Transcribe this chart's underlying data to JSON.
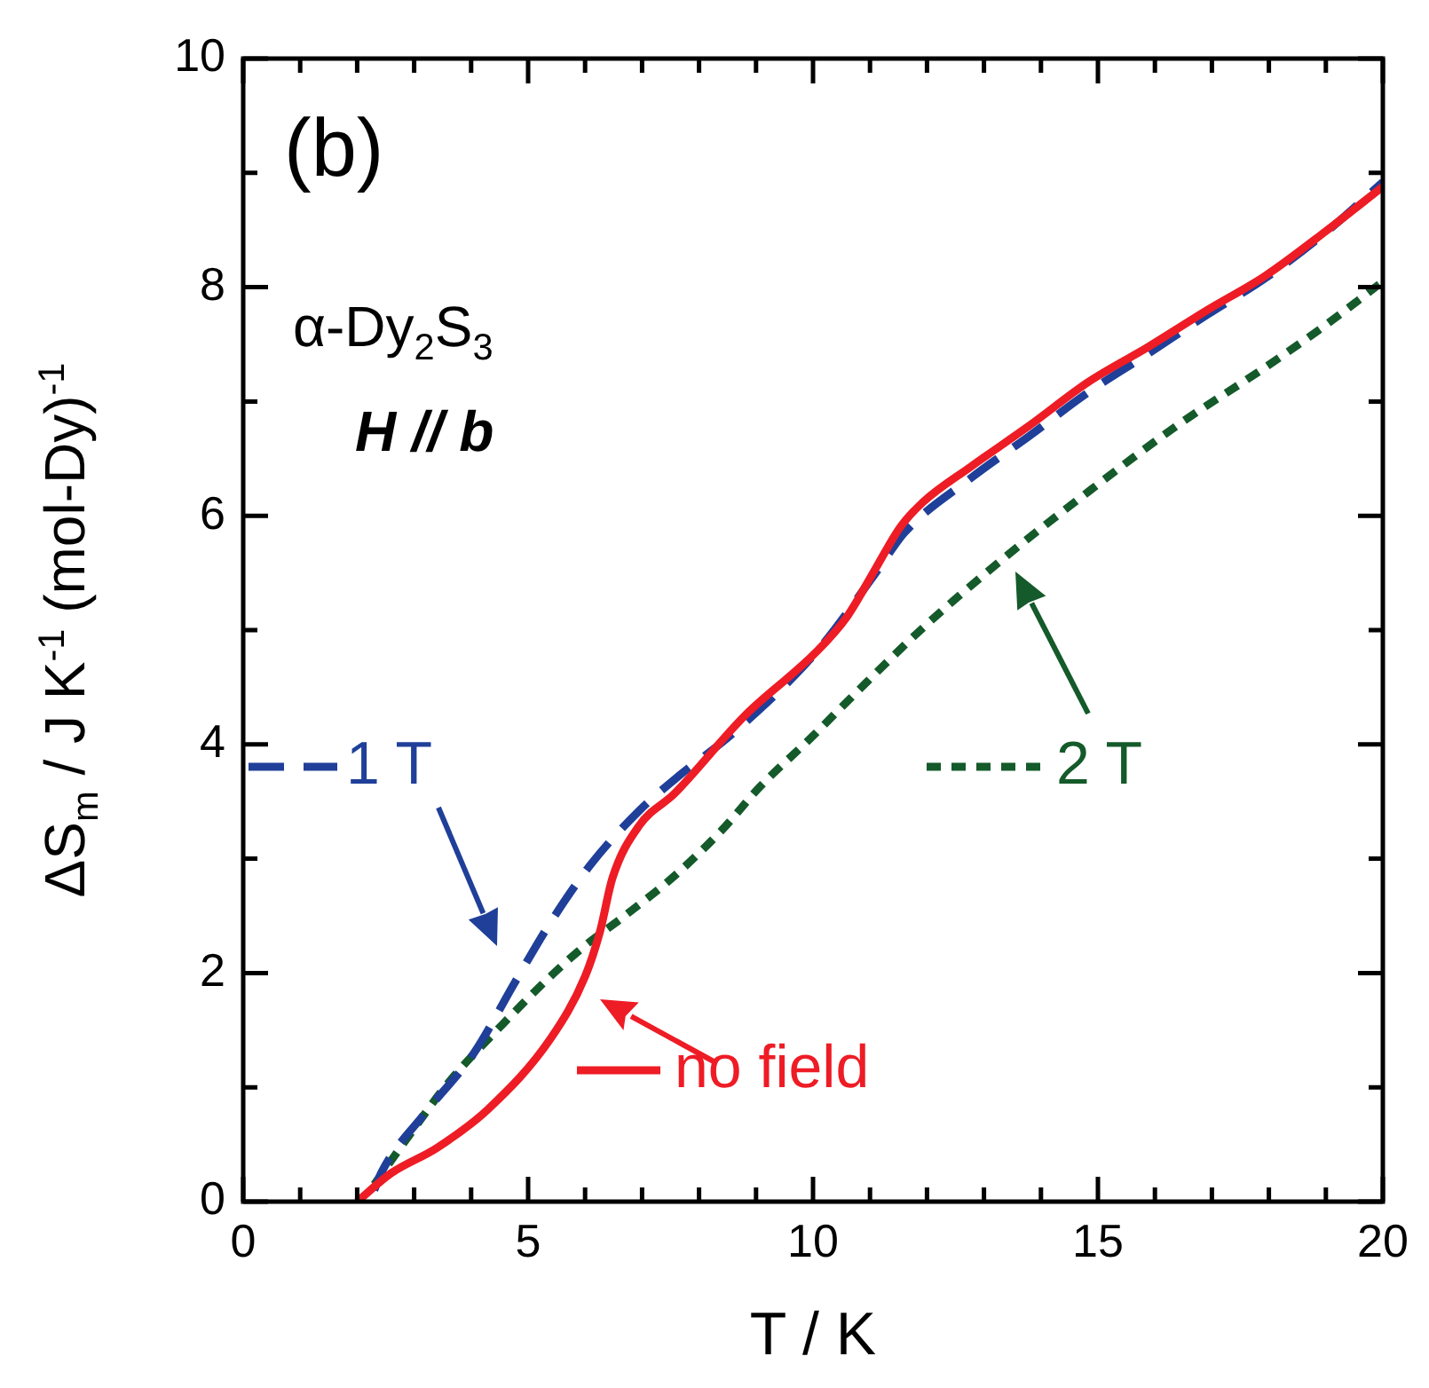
{
  "chart_data": {
    "type": "line",
    "xlabel": "T / K",
    "ylabel": "ΔS$_{m}$  / J K$^{-1}$ (mol-Dy)$^{-1}$",
    "annotations": [
      "(b)",
      "α-Dy$_{2}$S$_{3}$",
      "H // b"
    ],
    "xlim": [
      0,
      20
    ],
    "ylim": [
      0,
      10
    ],
    "xticks": [
      0,
      {
        "value": 1,
        "label": null
      },
      {
        "value": 2,
        "label": null
      },
      {
        "value": 3,
        "label": null
      },
      {
        "value": 4,
        "label": null
      },
      5,
      {
        "value": 6,
        "label": null
      },
      {
        "value": 7,
        "label": null
      },
      {
        "value": 8,
        "label": null
      },
      {
        "value": 9,
        "label": null
      },
      10,
      {
        "value": 11,
        "label": null
      },
      {
        "value": 12,
        "label": null
      },
      {
        "value": 13,
        "label": null
      },
      {
        "value": 14,
        "label": null
      },
      15,
      {
        "value": 16,
        "label": null
      },
      {
        "value": 17,
        "label": null
      },
      {
        "value": 18,
        "label": null
      },
      {
        "value": 19,
        "label": null
      },
      20
    ],
    "yticks": [
      0,
      {
        "value": 1,
        "label": null
      },
      2,
      {
        "value": 3,
        "label": null
      },
      4,
      {
        "value": 5,
        "label": null
      },
      6,
      {
        "value": 7,
        "label": null
      },
      8,
      {
        "value": 9,
        "label": null
      },
      10
    ],
    "grid": false,
    "legend": "bottom left",
    "series": [
      {
        "name": "no field",
        "color": "#ee1c25",
        "line_style": "solid",
        "x": [
          2.0,
          2.6,
          3.4,
          4.3,
          5.4,
          6.0,
          6.26,
          6.48,
          6.95,
          7.57,
          8.8,
          10.06,
          10.6,
          11.1,
          11.53,
          11.93,
          12.77,
          13.8,
          14.83,
          15.89,
          16.92,
          17.94,
          19.0,
          20.0
        ],
        "values": [
          0.0,
          0.25,
          0.47,
          0.81,
          1.43,
          1.97,
          2.36,
          2.83,
          3.29,
          3.57,
          4.25,
          4.81,
          5.12,
          5.54,
          5.9,
          6.12,
          6.43,
          6.79,
          7.17,
          7.48,
          7.8,
          8.1,
          8.49,
          8.88
        ]
      },
      {
        "name": "1 T",
        "color": "#1f3f99",
        "line_style": "dashed",
        "x": [
          2.3,
          2.43,
          3.2,
          4.05,
          4.77,
          5.39,
          6.1,
          6.95,
          7.66,
          8.6,
          10.06,
          11.1,
          11.6,
          12.77,
          13.8,
          14.83,
          15.89,
          16.92,
          17.94,
          19.0,
          20.0
        ],
        "values": [
          0.1,
          0.26,
          0.78,
          1.3,
          1.92,
          2.44,
          2.95,
          3.42,
          3.73,
          4.1,
          4.81,
          5.5,
          5.85,
          6.33,
          6.7,
          7.08,
          7.42,
          7.76,
          8.08,
          8.48,
          8.92
        ]
      },
      {
        "name": "2 T",
        "color": "#145a2a",
        "line_style": "dotted",
        "x": [
          2.3,
          2.9,
          3.6,
          4.55,
          5.39,
          6.0,
          6.64,
          7.57,
          8.4,
          9.07,
          9.97,
          10.69,
          11.93,
          13.4,
          14.83,
          16.39,
          17.94,
          19.0,
          20.0
        ],
        "values": [
          0.15,
          0.57,
          1.04,
          1.55,
          1.97,
          2.24,
          2.48,
          2.85,
          3.25,
          3.63,
          4.06,
          4.42,
          5.02,
          5.65,
          6.21,
          6.79,
          7.3,
          7.67,
          8.05
        ]
      }
    ]
  }
}
